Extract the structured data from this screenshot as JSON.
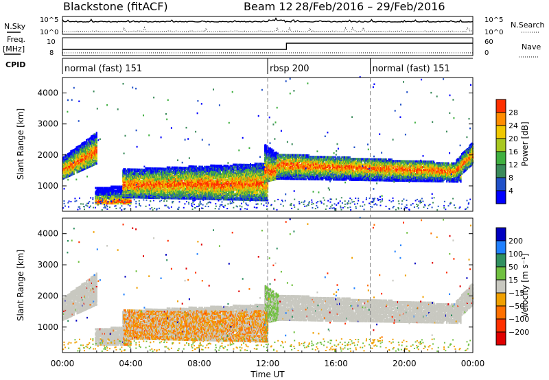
{
  "header": {
    "station": "Blackstone (fitACF)",
    "beam": "Beam 12",
    "dates": "28/Feb/2016 – 29/Feb/2016"
  },
  "strip_labels": {
    "nsky": "N.Sky",
    "nsearch": "N.Search",
    "freq": "Freq.",
    "freq_unit": "[MHz]",
    "nave": "Nave",
    "cpid": "CPID",
    "noise_top": "10^5",
    "noise_bottom": "10^0",
    "freq_top": "10",
    "freq_bottom": "8",
    "nave_top": "60",
    "nave_bottom": "0"
  },
  "cpid_segments": [
    {
      "label": "normal (fast) 151",
      "start_h": 0
    },
    {
      "label": "rbsp 200",
      "start_h": 12
    },
    {
      "label": "normal (fast) 151",
      "start_h": 18
    }
  ],
  "colors": {
    "power_scale": [
      "#0000ff",
      "#2050c8",
      "#3a8a5a",
      "#40b040",
      "#a8c820",
      "#f0c800",
      "#ff8c00",
      "#ff3000",
      "#e00000"
    ],
    "velocity_scale": [
      "#0000c0",
      "#2080ff",
      "#309060",
      "#70c040",
      "#c8c8c0",
      "#f0a000",
      "#ff7000",
      "#ff3000",
      "#e00000"
    ],
    "grey_scatter": "#c8c8c0"
  },
  "chart_data": [
    {
      "type": "heatmap",
      "name_hint": "power",
      "ylabel": "Slant Range [km]",
      "yticks": [
        1000,
        2000,
        3000,
        4000
      ],
      "ylim": [
        180,
        4500
      ],
      "xlim_h": [
        0,
        24
      ],
      "colorbar_title": "Power [dB]",
      "colorbar_ticks": [
        "4",
        "8",
        "12",
        "16",
        "20",
        "24",
        "28"
      ],
      "colorbar_range": [
        0,
        32
      ]
    },
    {
      "type": "heatmap",
      "name_hint": "velocity",
      "ylabel": "Slant Range [km]",
      "yticks": [
        1000,
        2000,
        3000,
        4000
      ],
      "ylim": [
        180,
        4500
      ],
      "xlim_h": [
        0,
        24
      ],
      "colorbar_title": "Velocity [m s⁻¹]",
      "colorbar_ticks": [
        "200",
        "100",
        "50",
        "15",
        "−15",
        "−50",
        "−100",
        "−200"
      ]
    }
  ],
  "xaxis": {
    "title": "Time UT",
    "ticks": [
      "00:00",
      "04:00",
      "08:00",
      "12:00",
      "16:00",
      "20:00",
      "00:00"
    ],
    "tick_hours": [
      0,
      4,
      8,
      12,
      16,
      20,
      24
    ]
  },
  "echo_bands": [
    {
      "t0": 0.0,
      "t1": 2.0,
      "r0a": 1200,
      "r0b": 1700,
      "r1a": 1900,
      "r1b": 2700,
      "core": 0.4
    },
    {
      "t0": 1.9,
      "t1": 4.0,
      "r0a": 400,
      "r0b": 400,
      "r1a": 900,
      "r1b": 1000,
      "core": 0.1
    },
    {
      "t0": 3.5,
      "t1": 12.0,
      "r0a": 600,
      "r0b": 500,
      "r1a": 1500,
      "r1b": 1700,
      "core": 0.45
    },
    {
      "t0": 11.8,
      "t1": 12.6,
      "r0a": 1100,
      "r0b": 1200,
      "r1a": 2300,
      "r1b": 2000,
      "core": 0.3
    },
    {
      "t0": 12.5,
      "t1": 23.3,
      "r0a": 1200,
      "r0b": 1100,
      "r1a": 2000,
      "r1b": 1700,
      "core": 0.55
    },
    {
      "t0": 23.0,
      "t1": 24.0,
      "r0a": 1200,
      "r0b": 1700,
      "r1a": 1800,
      "r1b": 2400,
      "core": 0.45
    }
  ]
}
